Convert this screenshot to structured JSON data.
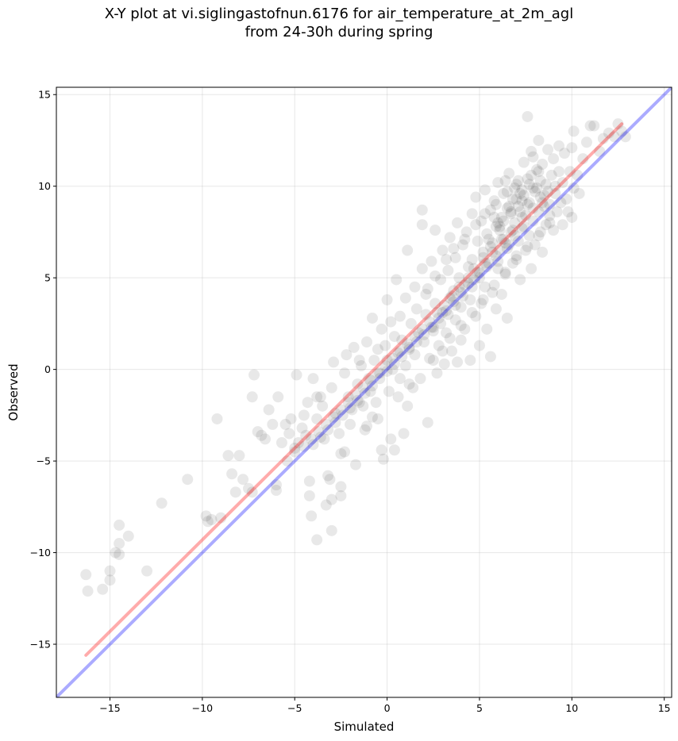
{
  "chart_data": {
    "type": "scatter",
    "title_lines": [
      "X-Y plot at vi.siglingastofnun.6176 for air_temperature_at_2m_agl",
      "from 24-30h during spring"
    ],
    "xlabel": "Simulated",
    "ylabel": "Observed",
    "xlim": [
      -17.9,
      15.4
    ],
    "ylim": [
      -17.9,
      15.4
    ],
    "xticks": [
      -15,
      -10,
      -5,
      0,
      5,
      10,
      15
    ],
    "yticks": [
      -15,
      -10,
      -5,
      0,
      5,
      10,
      15
    ],
    "xtick_labels": [
      "−15",
      "−10",
      "−5",
      "0",
      "5",
      "10",
      "15"
    ],
    "ytick_labels": [
      "−15",
      "−10",
      "−5",
      "0",
      "5",
      "10",
      "15"
    ],
    "grid": true,
    "point_color": "#000000",
    "point_opacity": 0.09,
    "lines": [
      {
        "role": "one-to-one",
        "color": "#0000ff",
        "x": [
          -17.9,
          15.4
        ],
        "y": [
          -17.9,
          15.4
        ]
      },
      {
        "role": "fit",
        "color": "#ff0000",
        "x": [
          -16.3,
          12.7
        ],
        "y": [
          -15.6,
          13.4
        ]
      }
    ],
    "points": [
      [
        -16.3,
        -11.2
      ],
      [
        -16.2,
        -12.1
      ],
      [
        -15.4,
        -12.0
      ],
      [
        -15.0,
        -11.0
      ],
      [
        -15.0,
        -11.5
      ],
      [
        -14.7,
        -10.0
      ],
      [
        -14.5,
        -9.5
      ],
      [
        -14.5,
        -8.5
      ],
      [
        -14.0,
        -9.1
      ],
      [
        -14.5,
        -10.1
      ],
      [
        -13.0,
        -11.0
      ],
      [
        -12.2,
        -7.3
      ],
      [
        -10.8,
        -6.0
      ],
      [
        -9.8,
        -8.0
      ],
      [
        -9.7,
        -8.3
      ],
      [
        -9.5,
        -8.2
      ],
      [
        -9.0,
        -8.1
      ],
      [
        -9.2,
        -2.7
      ],
      [
        -8.6,
        -4.7
      ],
      [
        -8.4,
        -5.7
      ],
      [
        -8.2,
        -6.7
      ],
      [
        -8.0,
        -4.7
      ],
      [
        -7.8,
        -6.0
      ],
      [
        -7.5,
        -6.5
      ],
      [
        -7.3,
        -6.7
      ],
      [
        -7.2,
        -0.3
      ],
      [
        -7.3,
        -1.5
      ],
      [
        -7.0,
        -3.4
      ],
      [
        -6.8,
        -3.6
      ],
      [
        -6.6,
        -3.8
      ],
      [
        -6.4,
        -2.2
      ],
      [
        -6.2,
        -3.0
      ],
      [
        -6.0,
        -6.3
      ],
      [
        -6.0,
        -6.6
      ],
      [
        -5.9,
        -1.5
      ],
      [
        -5.7,
        -4.0
      ],
      [
        -5.5,
        -3.0
      ],
      [
        -5.3,
        -3.5
      ],
      [
        -5.2,
        -2.7
      ],
      [
        -5.0,
        -4.5
      ],
      [
        -4.9,
        -0.3
      ],
      [
        -4.8,
        -4.0
      ],
      [
        -4.6,
        -3.2
      ],
      [
        -4.5,
        -2.5
      ],
      [
        -4.4,
        -3.6
      ],
      [
        -4.3,
        -1.8
      ],
      [
        -4.2,
        -6.1
      ],
      [
        -4.2,
        -6.9
      ],
      [
        -4.1,
        -8.0
      ],
      [
        -4.0,
        -0.5
      ],
      [
        -3.8,
        -2.7
      ],
      [
        -3.8,
        -9.3
      ],
      [
        -3.6,
        -1.5
      ],
      [
        -3.5,
        -2.0
      ],
      [
        -3.4,
        -3.8
      ],
      [
        -3.3,
        -7.4
      ],
      [
        -3.2,
        -5.8
      ],
      [
        -3.1,
        -6.0
      ],
      [
        -3.0,
        -7.1
      ],
      [
        -3.0,
        -8.8
      ],
      [
        -2.9,
        0.4
      ],
      [
        -2.8,
        -2.4
      ],
      [
        -2.6,
        -3.5
      ],
      [
        -2.5,
        -4.6
      ],
      [
        -2.5,
        -6.4
      ],
      [
        -2.5,
        -6.9
      ],
      [
        -2.3,
        -4.5
      ],
      [
        -2.2,
        0.8
      ],
      [
        -2.1,
        -1.5
      ],
      [
        -2.0,
        -3.0
      ],
      [
        -1.9,
        -2.2
      ],
      [
        -1.8,
        1.2
      ],
      [
        -1.7,
        -5.2
      ],
      [
        -1.6,
        -0.8
      ],
      [
        -1.5,
        -1.8
      ],
      [
        -1.4,
        0.2
      ],
      [
        -1.3,
        -2.0
      ],
      [
        -1.2,
        -3.3
      ],
      [
        -1.1,
        1.5
      ],
      [
        -1.0,
        -0.5
      ],
      [
        -0.9,
        -1.2
      ],
      [
        -0.8,
        -2.6
      ],
      [
        -0.8,
        2.8
      ],
      [
        -0.7,
        0.5
      ],
      [
        -0.6,
        -1.8
      ],
      [
        -0.5,
        1.1
      ],
      [
        -0.4,
        -0.2
      ],
      [
        -0.3,
        2.2
      ],
      [
        -0.3,
        -4.4
      ],
      [
        -0.2,
        -4.9
      ],
      [
        -0.1,
        1.3
      ],
      [
        0.0,
        0.5
      ],
      [
        0.0,
        3.8
      ],
      [
        0.1,
        -1.2
      ],
      [
        0.2,
        2.6
      ],
      [
        0.2,
        -3.8
      ],
      [
        0.3,
        0.0
      ],
      [
        0.4,
        -4.4
      ],
      [
        0.4,
        1.8
      ],
      [
        0.5,
        4.9
      ],
      [
        0.6,
        0.9
      ],
      [
        0.7,
        -0.5
      ],
      [
        0.7,
        2.9
      ],
      [
        0.8,
        1.6
      ],
      [
        0.9,
        -3.5
      ],
      [
        1.0,
        0.2
      ],
      [
        1.0,
        3.9
      ],
      [
        1.1,
        -2.0
      ],
      [
        1.1,
        6.5
      ],
      [
        1.2,
        1.2
      ],
      [
        1.3,
        2.5
      ],
      [
        1.4,
        -1.0
      ],
      [
        1.5,
        4.5
      ],
      [
        1.5,
        0.8
      ],
      [
        1.6,
        3.3
      ],
      [
        1.7,
        2.0
      ],
      [
        1.8,
        -0.5
      ],
      [
        1.9,
        5.5
      ],
      [
        1.9,
        7.9
      ],
      [
        1.9,
        8.7
      ],
      [
        2.0,
        1.5
      ],
      [
        2.1,
        3.0
      ],
      [
        2.2,
        -2.9
      ],
      [
        2.2,
        4.4
      ],
      [
        2.3,
        0.6
      ],
      [
        2.4,
        5.9
      ],
      [
        2.5,
        2.3
      ],
      [
        2.6,
        3.6
      ],
      [
        2.6,
        7.6
      ],
      [
        2.7,
        -0.2
      ],
      [
        2.8,
        1.3
      ],
      [
        2.9,
        4.9
      ],
      [
        3.0,
        3.1
      ],
      [
        3.0,
        6.5
      ],
      [
        3.1,
        0.3
      ],
      [
        3.2,
        2.0
      ],
      [
        3.3,
        5.4
      ],
      [
        3.4,
        3.9
      ],
      [
        3.4,
        7.2
      ],
      [
        3.5,
        1.0
      ],
      [
        3.6,
        4.3
      ],
      [
        3.7,
        2.7
      ],
      [
        3.7,
        6.1
      ],
      [
        3.8,
        0.4
      ],
      [
        3.8,
        8.0
      ],
      [
        3.9,
        5.0
      ],
      [
        4.0,
        3.4
      ],
      [
        4.0,
        1.6
      ],
      [
        4.1,
        6.8
      ],
      [
        4.2,
        4.6
      ],
      [
        4.2,
        2.2
      ],
      [
        4.3,
        7.5
      ],
      [
        4.4,
        5.6
      ],
      [
        4.5,
        0.5
      ],
      [
        4.5,
        3.8
      ],
      [
        4.6,
        8.5
      ],
      [
        4.6,
        6.0
      ],
      [
        4.7,
        4.9
      ],
      [
        4.8,
        2.9
      ],
      [
        4.8,
        9.4
      ],
      [
        4.9,
        7.0
      ],
      [
        5.0,
        5.3
      ],
      [
        5.0,
        1.3
      ],
      [
        5.1,
        3.6
      ],
      [
        5.1,
        8.1
      ],
      [
        5.2,
        6.4
      ],
      [
        5.3,
        4.5
      ],
      [
        5.3,
        9.8
      ],
      [
        5.4,
        2.2
      ],
      [
        5.4,
        7.4
      ],
      [
        5.5,
        5.8
      ],
      [
        5.6,
        0.7
      ],
      [
        5.6,
        8.7
      ],
      [
        5.7,
        4.2
      ],
      [
        5.7,
        6.9
      ],
      [
        5.8,
        9.2
      ],
      [
        5.9,
        3.3
      ],
      [
        5.9,
        7.8
      ],
      [
        6.0,
        5.5
      ],
      [
        6.0,
        10.2
      ],
      [
        6.1,
        6.5
      ],
      [
        6.2,
        8.3
      ],
      [
        6.2,
        4.1
      ],
      [
        6.3,
        9.6
      ],
      [
        6.3,
        7.1
      ],
      [
        6.4,
        5.2
      ],
      [
        6.5,
        2.8
      ],
      [
        6.5,
        8.8
      ],
      [
        6.6,
        6.8
      ],
      [
        6.6,
        10.7
      ],
      [
        6.7,
        7.5
      ],
      [
        6.8,
        5.8
      ],
      [
        6.8,
        9.3
      ],
      [
        6.9,
        8.0
      ],
      [
        7.0,
        6.2
      ],
      [
        7.0,
        10.1
      ],
      [
        7.1,
        7.0
      ],
      [
        7.2,
        8.6
      ],
      [
        7.2,
        4.9
      ],
      [
        7.3,
        9.8
      ],
      [
        7.3,
        7.7
      ],
      [
        7.4,
        11.3
      ],
      [
        7.5,
        6.5
      ],
      [
        7.5,
        8.4
      ],
      [
        7.6,
        10.4
      ],
      [
        7.7,
        7.3
      ],
      [
        7.7,
        9.1
      ],
      [
        7.8,
        5.5
      ],
      [
        7.8,
        11.9
      ],
      [
        7.9,
        8.1
      ],
      [
        8.0,
        9.7
      ],
      [
        8.0,
        6.8
      ],
      [
        8.1,
        10.9
      ],
      [
        8.2,
        8.6
      ],
      [
        8.2,
        12.5
      ],
      [
        8.3,
        7.5
      ],
      [
        8.3,
        9.4
      ],
      [
        8.4,
        6.4
      ],
      [
        8.4,
        11.2
      ],
      [
        8.5,
        8.9
      ],
      [
        8.6,
        10.1
      ],
      [
        8.6,
        7.9
      ],
      [
        8.7,
        12.0
      ],
      [
        8.8,
        9.0
      ],
      [
        8.8,
        8.4
      ],
      [
        8.9,
        10.6
      ],
      [
        9.0,
        7.6
      ],
      [
        9.0,
        11.5
      ],
      [
        9.1,
        9.6
      ],
      [
        9.2,
        8.6
      ],
      [
        9.3,
        10.8
      ],
      [
        9.3,
        12.2
      ],
      [
        9.4,
        9.1
      ],
      [
        9.5,
        7.9
      ],
      [
        9.5,
        10.2
      ],
      [
        9.6,
        11.8
      ],
      [
        9.7,
        9.3
      ],
      [
        9.8,
        8.6
      ],
      [
        9.9,
        10.8
      ],
      [
        10.0,
        8.3
      ],
      [
        10.0,
        12.1
      ],
      [
        10.1,
        9.9
      ],
      [
        10.1,
        13.0
      ],
      [
        10.3,
        10.6
      ],
      [
        10.4,
        9.6
      ],
      [
        10.6,
        11.5
      ],
      [
        10.8,
        12.4
      ],
      [
        11.0,
        13.3
      ],
      [
        11.2,
        13.3
      ],
      [
        11.5,
        11.9
      ],
      [
        11.7,
        12.6
      ],
      [
        12.0,
        12.9
      ],
      [
        12.3,
        12.7
      ],
      [
        12.5,
        13.4
      ],
      [
        12.7,
        13.0
      ],
      [
        12.9,
        12.7
      ],
      [
        7.6,
        13.8
      ],
      [
        7.9,
        11.6
      ],
      [
        6.9,
        9.9
      ],
      [
        6.4,
        10.3
      ],
      [
        7.1,
        8.9
      ],
      [
        7.4,
        9.5
      ],
      [
        8.1,
        9.9
      ],
      [
        7.8,
        10.6
      ],
      [
        8.5,
        9.5
      ],
      [
        6.7,
        8.5
      ],
      [
        6.1,
        7.6
      ],
      [
        5.8,
        8.3
      ],
      [
        6.3,
        8.1
      ],
      [
        7.0,
        9.3
      ],
      [
        7.6,
        9.0
      ],
      [
        8.3,
        10.3
      ],
      [
        8.7,
        9.7
      ],
      [
        9.1,
        10.0
      ],
      [
        5.6,
        6.7
      ],
      [
        6.2,
        7.1
      ],
      [
        6.8,
        7.6
      ],
      [
        7.3,
        8.3
      ],
      [
        7.9,
        8.8
      ],
      [
        8.4,
        9.1
      ],
      [
        5.2,
        6.1
      ],
      [
        5.7,
        6.4
      ],
      [
        6.4,
        6.9
      ],
      [
        6.9,
        7.3
      ],
      [
        7.4,
        7.8
      ],
      [
        4.7,
        5.5
      ],
      [
        5.3,
        5.8
      ],
      [
        5.9,
        6.2
      ],
      [
        6.5,
        6.6
      ],
      [
        4.4,
        5.0
      ],
      [
        4.9,
        5.3
      ],
      [
        5.4,
        5.6
      ],
      [
        6.0,
        5.9
      ],
      [
        3.9,
        4.5
      ],
      [
        4.4,
        4.7
      ],
      [
        5.0,
        5.0
      ],
      [
        3.5,
        4.0
      ],
      [
        4.0,
        4.2
      ],
      [
        4.6,
        4.5
      ],
      [
        3.1,
        3.5
      ],
      [
        3.6,
        3.7
      ],
      [
        4.1,
        4.0
      ],
      [
        2.7,
        3.1
      ],
      [
        3.2,
        3.2
      ],
      [
        3.7,
        3.5
      ],
      [
        2.3,
        2.6
      ],
      [
        2.8,
        2.8
      ],
      [
        3.3,
        3.0
      ],
      [
        1.9,
        2.2
      ],
      [
        2.4,
        2.3
      ],
      [
        2.9,
        2.5
      ],
      [
        1.5,
        1.8
      ],
      [
        2.0,
        1.9
      ],
      [
        2.5,
        2.1
      ],
      [
        1.1,
        1.4
      ],
      [
        1.6,
        1.5
      ],
      [
        0.7,
        1.0
      ],
      [
        1.2,
        1.1
      ],
      [
        0.3,
        0.6
      ],
      [
        0.8,
        0.7
      ],
      [
        -0.1,
        0.2
      ],
      [
        0.4,
        0.3
      ],
      [
        -0.5,
        -0.2
      ],
      [
        0.0,
        -0.1
      ],
      [
        -0.9,
        -0.6
      ],
      [
        -0.4,
        -0.5
      ],
      [
        -1.3,
        -1.0
      ],
      [
        -0.8,
        -0.9
      ],
      [
        -1.7,
        -1.4
      ],
      [
        -1.2,
        -1.3
      ],
      [
        -2.1,
        -1.8
      ],
      [
        -1.6,
        -1.7
      ],
      [
        -2.5,
        -2.2
      ],
      [
        -2.0,
        -2.1
      ],
      [
        -2.9,
        -2.6
      ],
      [
        -2.4,
        -2.5
      ],
      [
        -3.3,
        -3.0
      ],
      [
        -2.8,
        -2.9
      ],
      [
        -3.7,
        -3.4
      ],
      [
        -3.2,
        -3.3
      ],
      [
        -4.1,
        -3.8
      ],
      [
        -3.6,
        -3.7
      ],
      [
        -4.5,
        -4.2
      ],
      [
        -4.0,
        -4.1
      ],
      [
        -5.0,
        -4.3
      ],
      [
        -5.4,
        -5.0
      ],
      [
        2.1,
        4.1
      ],
      [
        2.6,
        5.1
      ],
      [
        3.2,
        6.0
      ],
      [
        3.6,
        6.6
      ],
      [
        4.2,
        7.1
      ],
      [
        4.8,
        7.9
      ],
      [
        5.3,
        8.5
      ],
      [
        5.9,
        9.0
      ],
      [
        6.5,
        9.7
      ],
      [
        7.1,
        10.3
      ],
      [
        3.4,
        1.7
      ],
      [
        4.0,
        2.4
      ],
      [
        4.6,
        3.1
      ],
      [
        5.2,
        3.8
      ],
      [
        5.8,
        4.6
      ],
      [
        6.4,
        5.3
      ],
      [
        7.0,
        6.0
      ],
      [
        7.6,
        6.7
      ],
      [
        8.2,
        7.3
      ],
      [
        8.8,
        8.0
      ],
      [
        2.5,
        0.5
      ],
      [
        3.0,
        1.0
      ],
      [
        1.2,
        -0.8
      ],
      [
        0.6,
        -1.5
      ],
      [
        -0.5,
        -2.7
      ],
      [
        -1.1,
        -3.1
      ],
      [
        -1.5,
        0.5
      ],
      [
        -2.3,
        -0.2
      ],
      [
        -3.0,
        -1.0
      ],
      [
        -3.8,
        -1.5
      ],
      [
        6.0,
        8.0
      ],
      [
        6.6,
        8.9
      ],
      [
        7.2,
        9.6
      ],
      [
        7.7,
        10.1
      ],
      [
        8.2,
        10.8
      ],
      [
        5.5,
        7.1
      ],
      [
        6.1,
        7.8
      ],
      [
        6.7,
        8.6
      ],
      [
        7.3,
        9.2
      ],
      [
        7.9,
        9.9
      ]
    ]
  }
}
